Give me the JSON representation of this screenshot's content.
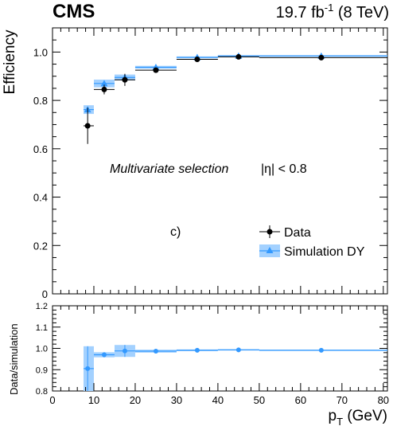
{
  "header": {
    "experiment": "CMS",
    "lumi": "19.7 fb",
    "lumi_exp": "-1",
    "energy": " (8 TeV)"
  },
  "chart_data": [
    {
      "type": "scatter",
      "panel": "main",
      "ylabel": "Efficiency",
      "ylim": [
        0,
        1.1
      ],
      "yticks": [
        "0",
        "0.2",
        "0.4",
        "0.6",
        "0.8",
        "1.0"
      ],
      "xlim": [
        0,
        81
      ],
      "annotations": {
        "selection": "Multivariate selection",
        "eta_cut": "|η| < 0.8",
        "panel_label": "c)"
      },
      "legend": {
        "position": "lower-right"
      },
      "series": [
        {
          "name": "Data",
          "color": "#000000",
          "points": [
            {
              "x": 8.5,
              "xlo": 7.5,
              "xhi": 10,
              "y": 0.695,
              "yerr": 0.075
            },
            {
              "x": 12.5,
              "xlo": 10,
              "xhi": 15,
              "y": 0.845,
              "yerr": 0.02
            },
            {
              "x": 17.5,
              "xlo": 15,
              "xhi": 20,
              "y": 0.885,
              "yerr": 0.025
            },
            {
              "x": 25,
              "xlo": 20,
              "xhi": 30,
              "y": 0.925,
              "yerr": 0.01
            },
            {
              "x": 35,
              "xlo": 30,
              "xhi": 40,
              "y": 0.97,
              "yerr": 0.006
            },
            {
              "x": 45,
              "xlo": 40,
              "xhi": 50,
              "y": 0.98,
              "yerr": 0.005
            },
            {
              "x": 65,
              "xlo": 50,
              "xhi": 81,
              "y": 0.977,
              "yerr": 0.006
            }
          ]
        },
        {
          "name": "Simulation DY",
          "color": "#3399ff",
          "band_color": "#a3d1ff",
          "points": [
            {
              "x": 8.5,
              "xlo": 7.5,
              "xhi": 10,
              "y": 0.762,
              "yerr": 0.018
            },
            {
              "x": 12.5,
              "xlo": 10,
              "xhi": 15,
              "y": 0.87,
              "yerr": 0.016
            },
            {
              "x": 17.5,
              "xlo": 15,
              "xhi": 20,
              "y": 0.895,
              "yerr": 0.012
            },
            {
              "x": 25,
              "xlo": 20,
              "xhi": 30,
              "y": 0.937,
              "yerr": 0.006
            },
            {
              "x": 35,
              "xlo": 30,
              "xhi": 40,
              "y": 0.978,
              "yerr": 0.004
            },
            {
              "x": 45,
              "xlo": 40,
              "xhi": 50,
              "y": 0.984,
              "yerr": 0.003
            },
            {
              "x": 65,
              "xlo": 50,
              "xhi": 81,
              "y": 0.984,
              "yerr": 0.003
            }
          ]
        }
      ]
    },
    {
      "type": "scatter",
      "panel": "ratio",
      "ylabel": "Data/simulation",
      "xlabel": "p",
      "xlabel_sub": "T",
      "xlabel_unit": " (GeV)",
      "ylim": [
        0.8,
        1.2
      ],
      "yticks": [
        "0.8",
        "0.9",
        "1.0",
        "1.1",
        "1.2"
      ],
      "xlim": [
        0,
        81
      ],
      "xticks": [
        "0",
        "10",
        "20",
        "30",
        "40",
        "50",
        "60",
        "70",
        "80"
      ],
      "series": [
        {
          "name": "Data/simulation",
          "color": "#3399ff",
          "band_color": "#a3d1ff",
          "points": [
            {
              "x": 8.5,
              "xlo": 7.5,
              "xhi": 10,
              "y": 0.905,
              "band": 0.105
            },
            {
              "x": 12.5,
              "xlo": 10,
              "xhi": 15,
              "y": 0.97,
              "band": 0.012
            },
            {
              "x": 17.5,
              "xlo": 15,
              "xhi": 20,
              "y": 0.988,
              "band": 0.028
            },
            {
              "x": 25,
              "xlo": 20,
              "xhi": 30,
              "y": 0.987,
              "band": 0.007
            },
            {
              "x": 35,
              "xlo": 30,
              "xhi": 40,
              "y": 0.991,
              "band": 0.004
            },
            {
              "x": 45,
              "xlo": 40,
              "xhi": 50,
              "y": 0.993,
              "band": 0.003
            },
            {
              "x": 65,
              "xlo": 50,
              "xhi": 81,
              "y": 0.991,
              "band": 0.003
            }
          ]
        }
      ]
    }
  ]
}
